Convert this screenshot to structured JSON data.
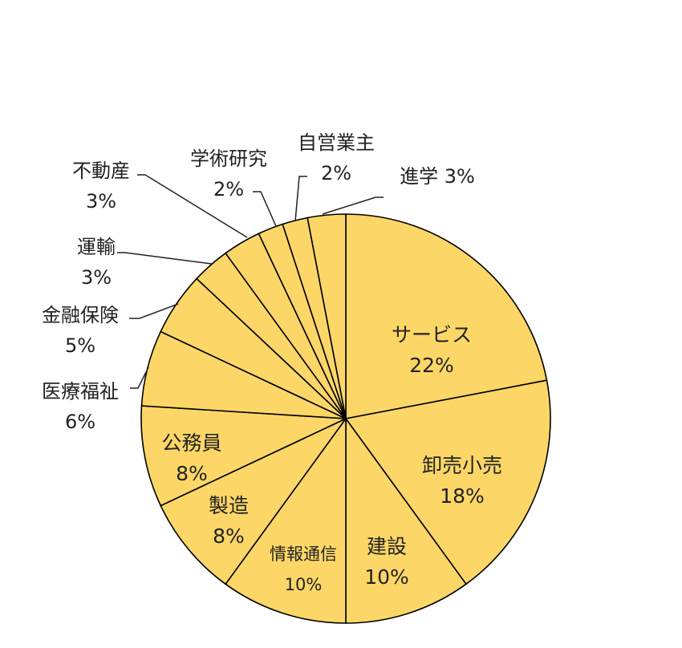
{
  "chart_data": {
    "type": "pie",
    "slice_color": "#FCD767",
    "edge_color": "#000000",
    "start_angle": "12 o'clock",
    "direction": "clockwise",
    "slices": [
      {
        "label": "サービス",
        "value": 22,
        "pct_text": "22%"
      },
      {
        "label": "卸売小売",
        "value": 18,
        "pct_text": "18%"
      },
      {
        "label": "建設",
        "value": 10,
        "pct_text": "10%"
      },
      {
        "label": "情報通信",
        "value": 10,
        "pct_text": "10%"
      },
      {
        "label": "製造",
        "value": 8,
        "pct_text": "8%"
      },
      {
        "label": "公務員",
        "value": 8,
        "pct_text": "8%"
      },
      {
        "label": "医療福祉",
        "value": 6,
        "pct_text": "6%"
      },
      {
        "label": "金融保険",
        "value": 5,
        "pct_text": "5%"
      },
      {
        "label": "運輸",
        "value": 3,
        "pct_text": "3%"
      },
      {
        "label": "不動産",
        "value": 3,
        "pct_text": "3%"
      },
      {
        "label": "学術研究",
        "value": 2,
        "pct_text": "2%"
      },
      {
        "label": "自営業主",
        "value": 2,
        "pct_text": "2%"
      },
      {
        "label": "進学",
        "value": 3,
        "pct_text": "3%"
      }
    ]
  }
}
